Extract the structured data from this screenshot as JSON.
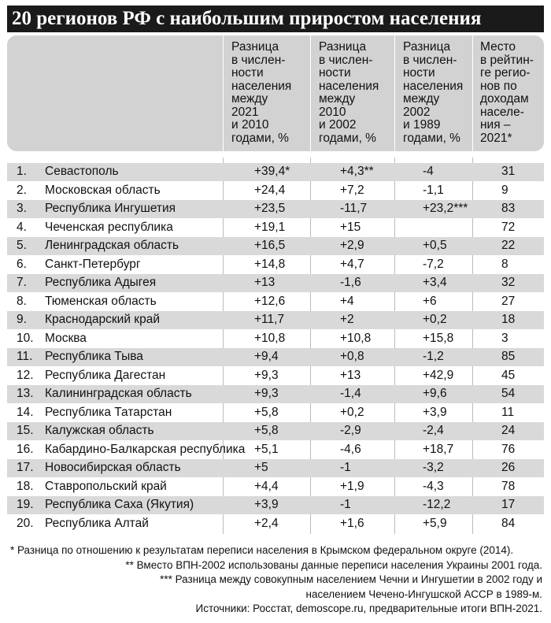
{
  "title": "20 регионов РФ с наибольшим приростом населения",
  "headers": [
    "Разница в числен-ности населения между 2021 и 2010 годами, %",
    "Разница в числен-ности населения между 2010 и 2002 годами, %",
    "Разница в числен-ности населения между 2002 и 1989 годами, %",
    "Место в рейтинге регио-нов по доходам населе-ния – 2021*"
  ],
  "header_lines": [
    [
      "Разница",
      "в числен-",
      "ности",
      "населения",
      "между",
      "2021",
      "и 2010",
      "годами, %"
    ],
    [
      "Разница",
      "в числен-",
      "ности",
      "населения",
      "между",
      "2010",
      "и 2002",
      "годами, %"
    ],
    [
      "Разница",
      "в числен-",
      "ности",
      "населения",
      "между",
      "2002",
      "и 1989",
      "годами, %"
    ],
    [
      "Место",
      "в рейтин-",
      "ге регио-",
      "нов по",
      "доходам",
      "населе-",
      "ния –",
      "2021*"
    ]
  ],
  "rows": [
    [
      "1.",
      "Севастополь",
      "+39,4*",
      "+4,3**",
      "-4",
      "31"
    ],
    [
      "2.",
      "Московская область",
      "+24,4",
      "+7,2",
      "-1,1",
      "9"
    ],
    [
      "3.",
      "Республика Ингушетия",
      "+23,5",
      "-11,7",
      "+23,2***",
      "83"
    ],
    [
      "4.",
      "Чеченская республика",
      "+19,1",
      "+15",
      "",
      "72"
    ],
    [
      "5.",
      "Ленинградская область",
      "+16,5",
      "+2,9",
      "+0,5",
      "22"
    ],
    [
      "6.",
      "Санкт-Петербург",
      "+14,8",
      "+4,7",
      "-7,2",
      "8"
    ],
    [
      "7.",
      "Республика Адыгея",
      "+13",
      "-1,6",
      "+3,4",
      "32"
    ],
    [
      "8.",
      "Тюменская область",
      "+12,6",
      "+4",
      "+6",
      "27"
    ],
    [
      "9.",
      "Краснодарский край",
      "+11,7",
      "+2",
      "+0,2",
      "18"
    ],
    [
      "10.",
      "Москва",
      "+10,8",
      "+10,8",
      "+15,8",
      "3"
    ],
    [
      "11.",
      "Республика Тыва",
      "+9,4",
      "+0,8",
      "-1,2",
      "85"
    ],
    [
      "12.",
      "Республика Дагестан",
      "+9,3",
      "+13",
      "+42,9",
      "45"
    ],
    [
      "13.",
      "Калининградская область",
      "+9,3",
      "-1,4",
      "+9,6",
      "54"
    ],
    [
      "14.",
      "Республика Татарстан",
      "+5,8",
      "+0,2",
      "+3,9",
      "11"
    ],
    [
      "15.",
      "Калужская область",
      "+5,8",
      "-2,9",
      "-2,4",
      "24"
    ],
    [
      "16.",
      "Кабардино-Балкарская республика",
      "+5,1",
      "-4,6",
      "+18,7",
      "76"
    ],
    [
      "17.",
      "Новосибирская область",
      "+5",
      "-1",
      "-3,2",
      "26"
    ],
    [
      "18.",
      "Ставропольский край",
      "+4,4",
      "+1,9",
      "-4,3",
      "78"
    ],
    [
      "19.",
      "Республика Саха (Якутия)",
      "+3,9",
      "-1",
      "-12,2",
      "17"
    ],
    [
      "20.",
      "Республика Алтай",
      "+2,4",
      "+1,6",
      "+5,9",
      "84"
    ]
  ],
  "footnotes": [
    "* Разница по отношению к результатам переписи населения в Крымском федеральном округе (2014).",
    "** Вместо ВПН-2002 использованы данные переписи населения Украины 2001 года.",
    "*** Разница между совокупным населением Чечни и Ингушетии в 2002 году и населением Чечено-Ингушской АССР в 1989-м.",
    "Источники: Росстат, demoscope.ru, предварительные итоги ВПН-2021."
  ]
}
